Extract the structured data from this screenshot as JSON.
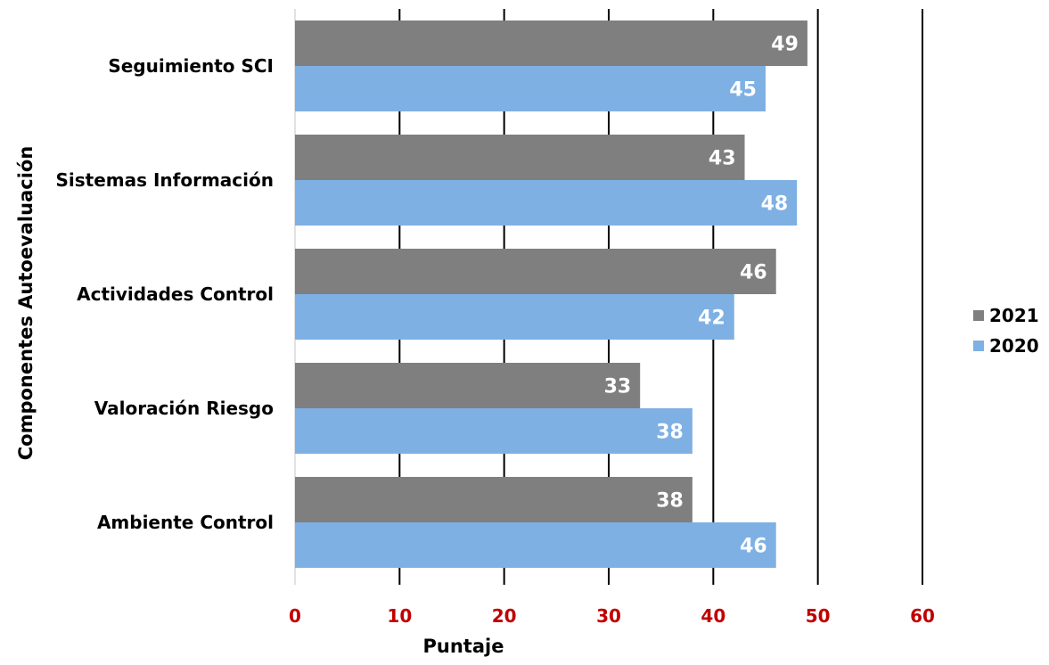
{
  "chart_data": {
    "type": "bar",
    "orientation": "horizontal",
    "categories": [
      "Seguimiento SCI",
      "Sistemas Información",
      "Actividades Control",
      "Valoración Riesgo",
      "Ambiente Control"
    ],
    "series": [
      {
        "name": "2021",
        "color": "#7f7f7f",
        "values": [
          49,
          43,
          46,
          33,
          38
        ]
      },
      {
        "name": "2020",
        "color": "#7eb0e4",
        "values": [
          45,
          48,
          42,
          38,
          46
        ]
      }
    ],
    "xlabel": "Puntaje",
    "ylabel": "Componentes Autoevaluación",
    "xlim": [
      0,
      60
    ],
    "xticks": [
      "0",
      "10",
      "20",
      "30",
      "40",
      "50",
      "60"
    ],
    "tick_label_color": "#c00000",
    "grid": true,
    "data_labels": true,
    "legend_position": "right"
  }
}
